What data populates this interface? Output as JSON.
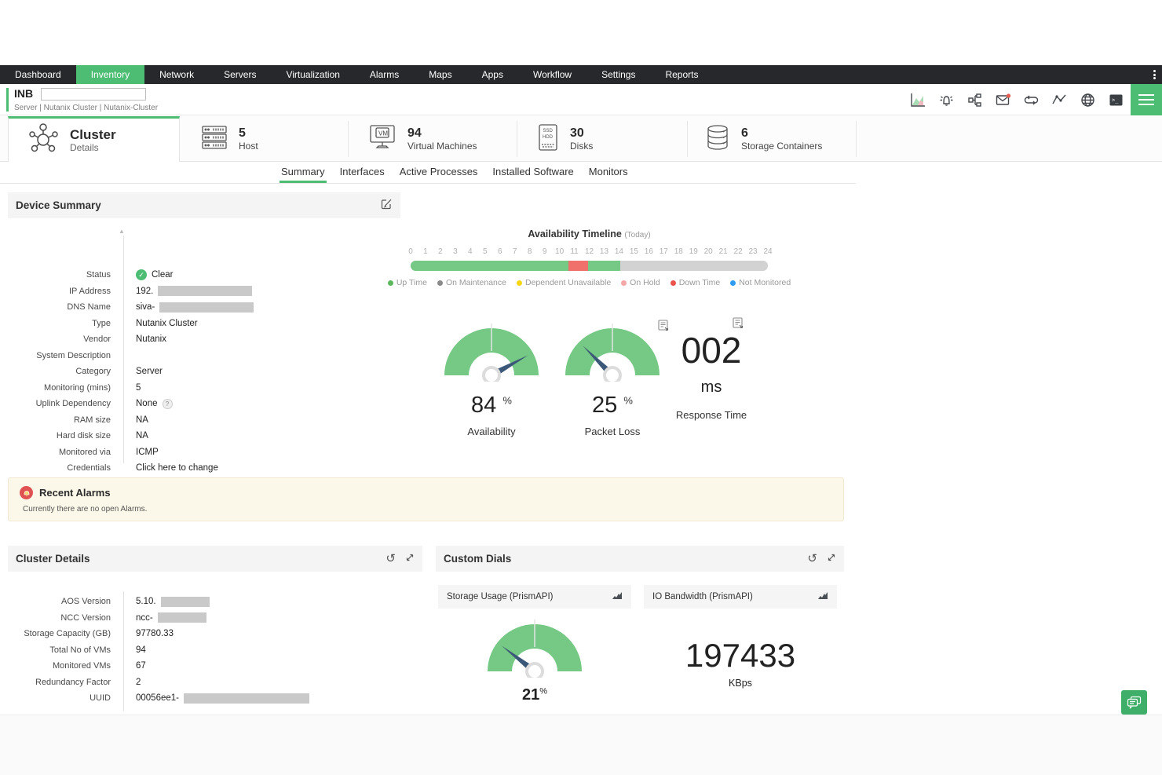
{
  "colors": {
    "accent": "#4dbd74",
    "nav_bg": "#26282c",
    "gauge_green": "#76c885",
    "needle": "#3b5878",
    "up": "#76c885",
    "down": "#f0716c",
    "not_monitored": "#d2d2d2"
  },
  "navbar": {
    "tabs": [
      "Dashboard",
      "Inventory",
      "Network",
      "Servers",
      "Virtualization",
      "Alarms",
      "Maps",
      "Apps",
      "Workflow",
      "Settings",
      "Reports"
    ]
  },
  "header": {
    "device_name": "INB",
    "device_name_value": "",
    "breadcrumb": "Server | Nutanix Cluster | Nutanix-Cluster"
  },
  "entity_tabs": [
    {
      "title": "Cluster",
      "subtitle": "Details"
    },
    {
      "count": "5",
      "label": "Host"
    },
    {
      "count": "94",
      "label": "Virtual Machines"
    },
    {
      "count": "30",
      "label": "Disks"
    },
    {
      "count": "6",
      "label": "Storage Containers"
    }
  ],
  "subtabs": [
    "Summary",
    "Interfaces",
    "Active Processes",
    "Installed Software",
    "Monitors"
  ],
  "device_summary": {
    "title": "Device Summary",
    "fields": [
      {
        "label": "Status",
        "value": "Clear"
      },
      {
        "label": "IP Address",
        "value": "192."
      },
      {
        "label": "DNS Name",
        "value": "siva-"
      },
      {
        "label": "Type",
        "value": "Nutanix Cluster"
      },
      {
        "label": "Vendor",
        "value": "Nutanix"
      },
      {
        "label": "System Description",
        "value": ""
      },
      {
        "label": "Category",
        "value": "Server"
      },
      {
        "label": "Monitoring (mins)",
        "value": "5"
      },
      {
        "label": "Uplink Dependency",
        "value": "None",
        "help": "?"
      },
      {
        "label": "RAM size",
        "value": "NA"
      },
      {
        "label": "Hard disk size",
        "value": "NA"
      },
      {
        "label": "Monitored via",
        "value": "ICMP"
      },
      {
        "label": "Credentials",
        "value": "Click here to change"
      }
    ]
  },
  "timeline": {
    "title": "Availability Timeline",
    "period": "(Today)",
    "ticks": [
      0,
      1,
      2,
      3,
      4,
      5,
      6,
      7,
      8,
      9,
      10,
      11,
      12,
      13,
      14,
      15,
      16,
      17,
      18,
      19,
      20,
      21,
      22,
      23,
      24
    ],
    "segments": [
      {
        "state": "up",
        "from": 0,
        "to": 10.6
      },
      {
        "state": "down",
        "from": 10.6,
        "to": 11.9
      },
      {
        "state": "up",
        "from": 11.9,
        "to": 14.1
      },
      {
        "state": "not_monitored",
        "from": 14.1,
        "to": 24
      }
    ],
    "legend": [
      {
        "label": "Up Time",
        "color": "#5cb85c"
      },
      {
        "label": "On Maintenance",
        "color": "#8a8a8a"
      },
      {
        "label": "Dependent Unavailable",
        "color": "#f7d614"
      },
      {
        "label": "On Hold",
        "color": "#f5a6a6"
      },
      {
        "label": "Down Time",
        "color": "#e9534a"
      },
      {
        "label": "Not Monitored",
        "color": "#2e9bf0"
      }
    ]
  },
  "gauges": [
    {
      "label": "Availability",
      "value": 84,
      "unit": "%"
    },
    {
      "label": "Packet Loss",
      "value": 25,
      "unit": "%"
    },
    {
      "label": "Response Time",
      "value": "002",
      "unit": "ms"
    }
  ],
  "alarms": {
    "title": "Recent Alarms",
    "message": "Currently there are no open Alarms."
  },
  "cluster_details": {
    "title": "Cluster Details",
    "fields": [
      {
        "label": "AOS Version",
        "value": "5.10."
      },
      {
        "label": "NCC Version",
        "value": "ncc-"
      },
      {
        "label": "Storage Capacity (GB)",
        "value": "97780.33"
      },
      {
        "label": "Total No of VMs",
        "value": "94"
      },
      {
        "label": "Monitored VMs",
        "value": "67"
      },
      {
        "label": "Redundancy Factor",
        "value": "2"
      },
      {
        "label": "UUID",
        "value": "00056ee1-"
      }
    ]
  },
  "custom_dials": {
    "title": "Custom Dials",
    "dials": [
      {
        "title": "Storage Usage (PrismAPI)",
        "value": 21,
        "unit": "%"
      },
      {
        "title": "IO Bandwidth (PrismAPI)",
        "value": "197433",
        "unit": "KBps"
      }
    ]
  }
}
